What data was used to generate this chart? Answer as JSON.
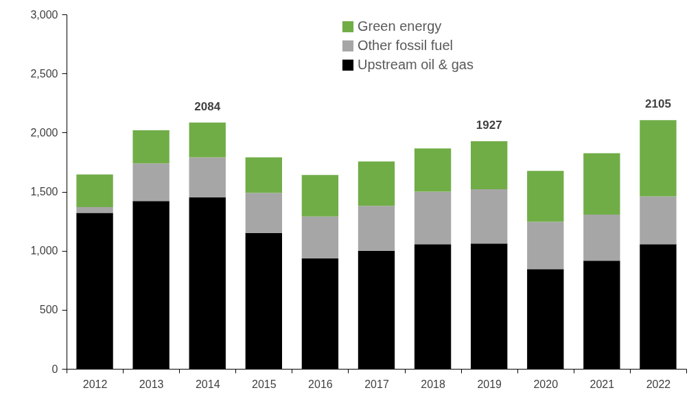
{
  "chart_data": {
    "type": "bar",
    "stacked": true,
    "categories": [
      "2012",
      "2013",
      "2014",
      "2015",
      "2016",
      "2017",
      "2018",
      "2019",
      "2020",
      "2021",
      "2022"
    ],
    "series": [
      {
        "name": "Upstream oil & gas",
        "color": "#000000",
        "values": [
          1320,
          1420,
          1450,
          1150,
          935,
          1000,
          1055,
          1060,
          845,
          915,
          1055
        ]
      },
      {
        "name": "Other fossil fuel",
        "color": "#a6a6a6",
        "values": [
          50,
          320,
          340,
          340,
          355,
          380,
          445,
          460,
          400,
          390,
          405
        ]
      },
      {
        "name": "Green energy",
        "color": "#70ad47",
        "values": [
          275,
          280,
          294,
          300,
          350,
          375,
          365,
          407,
          430,
          520,
          645
        ]
      }
    ],
    "totals": [
      null,
      null,
      "2084",
      null,
      null,
      null,
      null,
      "1927",
      null,
      null,
      "2105"
    ],
    "ylim": [
      0,
      3000
    ],
    "yticks": [
      0,
      500,
      {
        "value": 1000,
        "label": "1,000"
      },
      {
        "value": 1500,
        "label": "1,500"
      },
      {
        "value": 2000,
        "label": "2,000"
      },
      {
        "value": 2500,
        "label": "2,500"
      },
      {
        "value": 3000,
        "label": "3,000"
      }
    ],
    "grid": false,
    "legend": "top"
  }
}
